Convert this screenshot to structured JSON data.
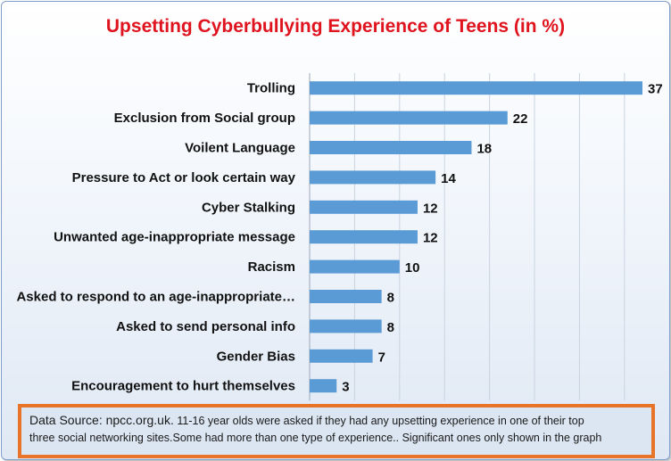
{
  "chart_data": {
    "type": "bar",
    "orientation": "horizontal",
    "title": "Upsetting Cyberbullying Experience of Teens (in %)",
    "categories": [
      "Trolling",
      "Exclusion from Social group",
      "Voilent Language",
      "Pressure to Act or look certain way",
      "Cyber Stalking",
      "Unwanted age-inappropriate message",
      "Racism",
      "Asked to respond to an age-inappropriate…",
      "Asked to send personal info",
      "Gender Bias",
      "Encouragement to hurt themselves"
    ],
    "values": [
      37,
      22,
      18,
      14,
      12,
      12,
      10,
      8,
      8,
      7,
      3
    ],
    "xlim": [
      0,
      37
    ],
    "grid": true,
    "data_labels": true,
    "colors": {
      "bar": "#5b9bd5",
      "title": "#e0141e",
      "note_border": "#e8742a"
    }
  },
  "note": {
    "source": "Data Source: npcc.org.uk.",
    "line1": " 11-16 year olds were asked if they had any upsetting experience in one of their top",
    "line2": "three social networking sites.Some had more than one type of experience.. Significant ones only shown in the graph"
  }
}
